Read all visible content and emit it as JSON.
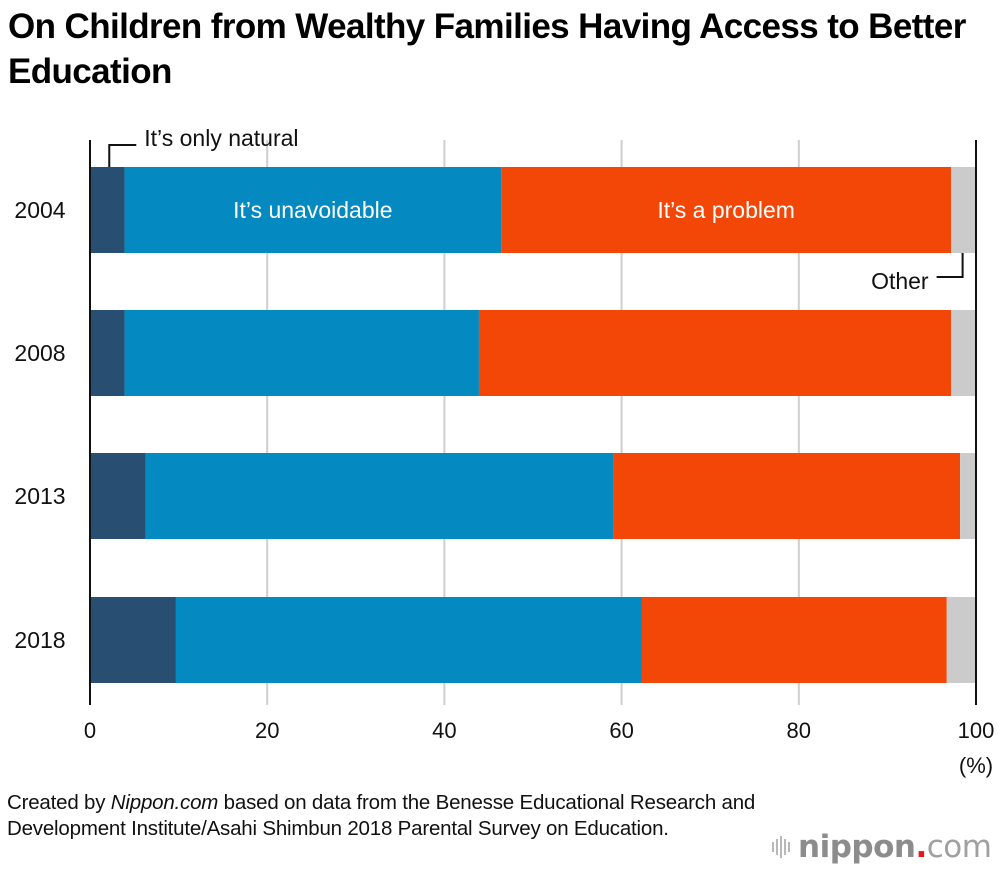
{
  "chart_data": {
    "type": "bar",
    "orientation": "horizontal",
    "stacked": true,
    "title": "On Children from Wealthy Families Having Access to Better Education",
    "categories": [
      "2004",
      "2008",
      "2013",
      "2018"
    ],
    "series": [
      {
        "name": "It’s only natural",
        "color": "#284e72",
        "values": [
          3.9,
          3.9,
          6.3,
          9.7
        ]
      },
      {
        "name": "It’s unavoidable",
        "color": "#0589c1",
        "values": [
          42.5,
          40.0,
          52.8,
          52.6
        ]
      },
      {
        "name": "It’s a problem",
        "color": "#f24707",
        "values": [
          50.8,
          53.3,
          39.1,
          34.4
        ]
      },
      {
        "name": "Other",
        "color": "#cbcbcb",
        "values": [
          2.8,
          2.8,
          1.8,
          3.3
        ]
      }
    ],
    "xlim": [
      0,
      100
    ],
    "xticks": [
      "0",
      "20",
      "40",
      "60",
      "80",
      "100"
    ],
    "xunit": "(%)",
    "xlabel": "",
    "ylabel": "",
    "grid": true,
    "annotations": {
      "natural": "It’s only natural",
      "unavoidable": "It’s unavoidable",
      "problem": "It’s a problem",
      "other": "Other"
    }
  },
  "source": {
    "prefix": "Created by ",
    "publisher": "Nippon.com",
    "rest": " based on data from the Benesse Educational Research and Development Institute/Asahi Shimbun 2018 Parental Survey on Education."
  },
  "logo": {
    "name": "nippon",
    "dot": ".",
    "tld": "com"
  }
}
